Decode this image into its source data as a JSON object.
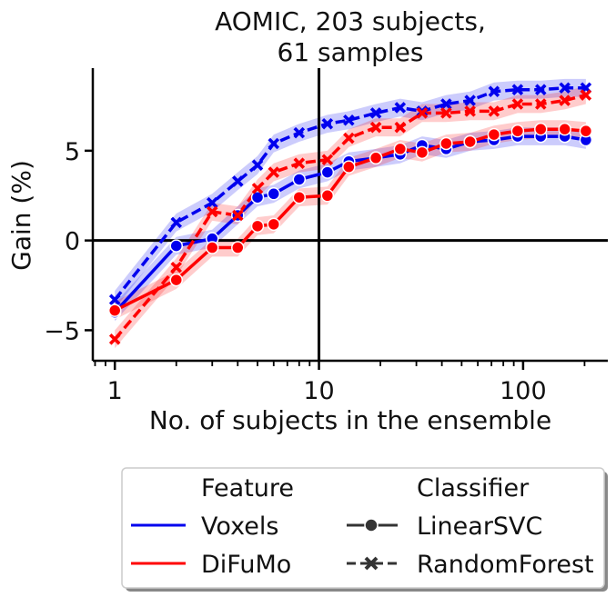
{
  "chart_data": {
    "type": "line",
    "title_lines": [
      "AOMIC, 203 subjects,",
      "61 samples"
    ],
    "xlabel": "No. of subjects in the ensemble",
    "ylabel": "Gain (%)",
    "xscale": "log",
    "xlim": [
      0.78,
      260
    ],
    "ylim": [
      -6.7,
      9.6
    ],
    "xticks": [
      1,
      10,
      100
    ],
    "xtick_labels": [
      "1",
      "10",
      "100"
    ],
    "yticks": [
      -5,
      0,
      5
    ],
    "ytick_labels": [
      "−5",
      "0",
      "5"
    ],
    "reference_lines": {
      "x": 10,
      "y": 0
    },
    "legend": {
      "placement": "below",
      "feature_title": "Feature",
      "classifier_title": "Classifier",
      "feature_items": [
        {
          "label": "Voxels",
          "color": "#0000ee"
        },
        {
          "label": "DiFuMo",
          "color": "#ff0000"
        }
      ],
      "classifier_items": [
        {
          "label": "LinearSVC",
          "marker": "circle",
          "dash": "solid"
        },
        {
          "label": "RandomForest",
          "marker": "x",
          "dash": "dashed"
        }
      ]
    },
    "x": [
      1,
      2,
      3,
      4,
      5,
      6,
      8,
      11,
      14,
      19,
      25,
      32,
      42,
      55,
      72,
      94,
      122,
      160,
      203
    ],
    "series": [
      {
        "name": "Voxels LinearSVC",
        "color": "#0000ee",
        "marker": "circle",
        "dash": "solid",
        "values": [
          -4.0,
          -0.3,
          0.1,
          1.4,
          2.4,
          2.6,
          3.4,
          3.8,
          4.4,
          4.6,
          4.8,
          5.3,
          5.1,
          5.5,
          5.6,
          5.8,
          5.8,
          5.8,
          5.6
        ],
        "band": 0.5
      },
      {
        "name": "Voxels RandomForest",
        "color": "#0000ee",
        "marker": "x",
        "dash": "dashed",
        "values": [
          -3.3,
          1.0,
          2.1,
          3.3,
          4.2,
          5.4,
          6.0,
          6.5,
          6.7,
          7.1,
          7.4,
          7.2,
          7.6,
          7.8,
          8.3,
          8.4,
          8.4,
          8.5,
          8.5
        ],
        "band": 0.5
      },
      {
        "name": "DiFuMo LinearSVC",
        "color": "#ff0000",
        "marker": "circle",
        "dash": "solid",
        "values": [
          -3.9,
          -2.2,
          -0.4,
          -0.4,
          0.8,
          0.9,
          2.4,
          2.5,
          4.1,
          4.6,
          5.1,
          4.9,
          5.4,
          5.5,
          5.9,
          6.1,
          6.2,
          6.2,
          6.1
        ],
        "band": 0.5
      },
      {
        "name": "DiFuMo RandomForest",
        "color": "#ff0000",
        "marker": "x",
        "dash": "dashed",
        "values": [
          -5.5,
          -1.5,
          1.6,
          1.4,
          2.9,
          3.8,
          4.3,
          4.5,
          5.7,
          6.3,
          6.3,
          7.1,
          7.1,
          7.2,
          7.2,
          7.6,
          7.6,
          7.8,
          8.1
        ],
        "band": 0.5
      }
    ]
  }
}
